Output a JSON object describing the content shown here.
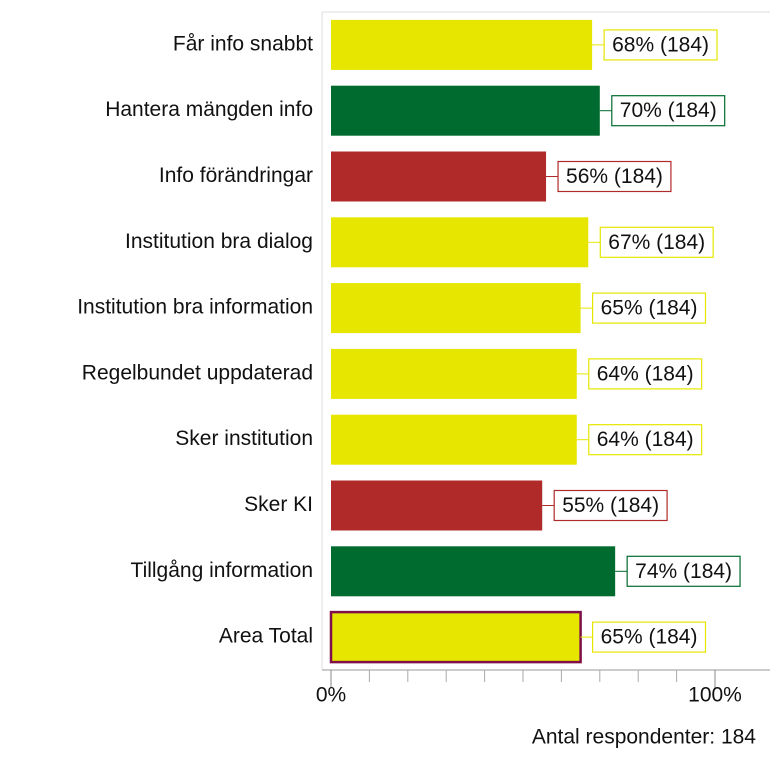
{
  "chart_data": {
    "type": "barh",
    "categories": [
      "Får info snabbt",
      "Hantera mängden info",
      "Info förändringar",
      "Institution bra dialog",
      "Institution bra information",
      "Regelbundet uppdaterad",
      "Sker institution",
      "Sker KI",
      "Tillgång information",
      "Area Total"
    ],
    "values": [
      68,
      70,
      56,
      67,
      65,
      64,
      64,
      55,
      74,
      65
    ],
    "value_labels": [
      "68% (184)",
      "70% (184)",
      "56% (184)",
      "67% (184)",
      "65% (184)",
      "64% (184)",
      "64% (184)",
      "55% (184)",
      "74% (184)",
      "65% (184)"
    ],
    "colors": [
      "#e6e600",
      "#006b2e",
      "#b02a2a",
      "#e6e600",
      "#e6e600",
      "#e6e600",
      "#e6e600",
      "#b02a2a",
      "#006b2e",
      "#e6e600"
    ],
    "highlight": {
      "index": 9,
      "edgecolor": "#80104a"
    },
    "xlim": [
      0,
      100
    ],
    "xticks": [
      {
        "value": 0,
        "label": "0%"
      },
      {
        "value": 100,
        "label": "100%"
      }
    ],
    "minor_xticks": [
      10,
      20,
      30,
      40,
      50,
      60,
      70,
      80,
      90
    ],
    "note": "Antal respondenter: 184"
  }
}
